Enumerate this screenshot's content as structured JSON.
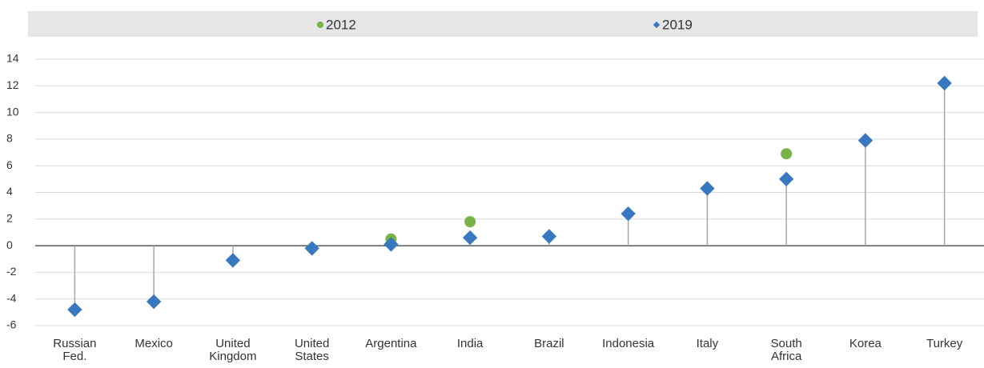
{
  "chart_data": {
    "type": "dot",
    "categories": [
      "Russian Fed.",
      "Mexico",
      "United Kingdom",
      "United States",
      "Argentina",
      "India",
      "Brazil",
      "Indonesia",
      "Italy",
      "South Africa",
      "Korea",
      "Turkey"
    ],
    "series": [
      {
        "name": "2012",
        "color": "#77b347",
        "marker": "circle",
        "values": [
          null,
          null,
          null,
          null,
          0.5,
          1.8,
          null,
          null,
          null,
          6.9,
          null,
          null
        ]
      },
      {
        "name": "2019",
        "color": "#3878c0",
        "marker": "diamond",
        "values": [
          -4.8,
          -4.2,
          -1.1,
          -0.2,
          0.1,
          0.6,
          0.7,
          2.4,
          4.3,
          5.0,
          7.9,
          12.2
        ]
      }
    ],
    "ylim": [
      -6,
      14
    ],
    "yticks": [
      -6,
      -4,
      -2,
      0,
      2,
      4,
      6,
      8,
      10,
      12,
      14
    ],
    "grid": true,
    "legend": "top"
  }
}
